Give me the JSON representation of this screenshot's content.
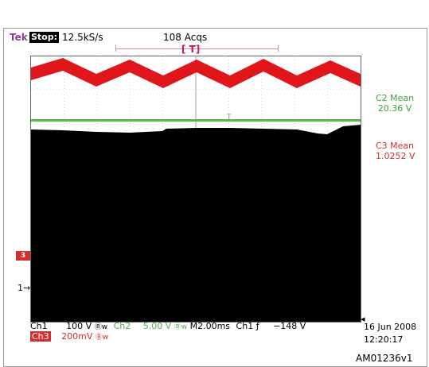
{
  "header": {
    "brand": "Tek",
    "state": "Stop:",
    "sample_rate": "12.5kS/s",
    "acqs": "108 Acqs",
    "trigger_marker": "[ T]"
  },
  "measurements": {
    "c2_label": "C2 Mean",
    "c2_value": "20.36 V",
    "c3_label": "C3 Mean",
    "c3_value": "1.0252 V"
  },
  "markers": {
    "ch3": "3",
    "ch1": "1→"
  },
  "footer": {
    "ch1_label": "Ch1",
    "ch1_scale": "100 V",
    "ch1_bw": "Ⓑw",
    "ch2_label": "Ch2",
    "ch2_scale": "5.00 V",
    "ch2_bw": "Ⓑw",
    "timebase": "M2.00ms",
    "trigger_source": "Ch1",
    "trigger_slope": "ƒ",
    "trigger_level": "−148 V",
    "ch3_label": "Ch3",
    "ch3_scale": "200mV",
    "ch3_bw": "Ⓑw",
    "date": "16 Jun 2008",
    "time": "12:20:17"
  },
  "figure_ref": "AM01236v1",
  "colors": {
    "ch1": "#000000",
    "ch2": "#4caf50",
    "ch3": "#d32f2f",
    "brand": "#8a3d96"
  }
}
